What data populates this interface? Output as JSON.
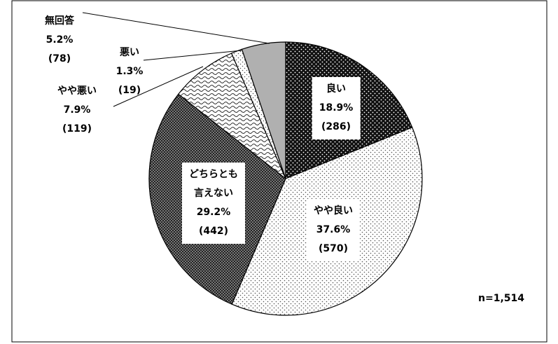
{
  "chart_data": {
    "type": "pie",
    "categories": [
      "良い",
      "やや良い",
      "どちらとも\n言えない",
      "やや悪い",
      "悪い",
      "無回答"
    ],
    "values": [
      18.9,
      37.6,
      29.2,
      7.9,
      1.3,
      5.2
    ],
    "value_labels": [
      "18.9%",
      "37.6%",
      "29.2%",
      "7.9%",
      "1.3%",
      "5.2%"
    ],
    "count_labels": [
      "(286)",
      "(570)",
      "(442)",
      "(119)",
      "(19)",
      "(78)"
    ],
    "fills": [
      "dark-dots",
      "light-dots",
      "checker",
      "wave",
      "light-dots",
      "#b0b0b0"
    ],
    "annotation": "n=1,514"
  }
}
